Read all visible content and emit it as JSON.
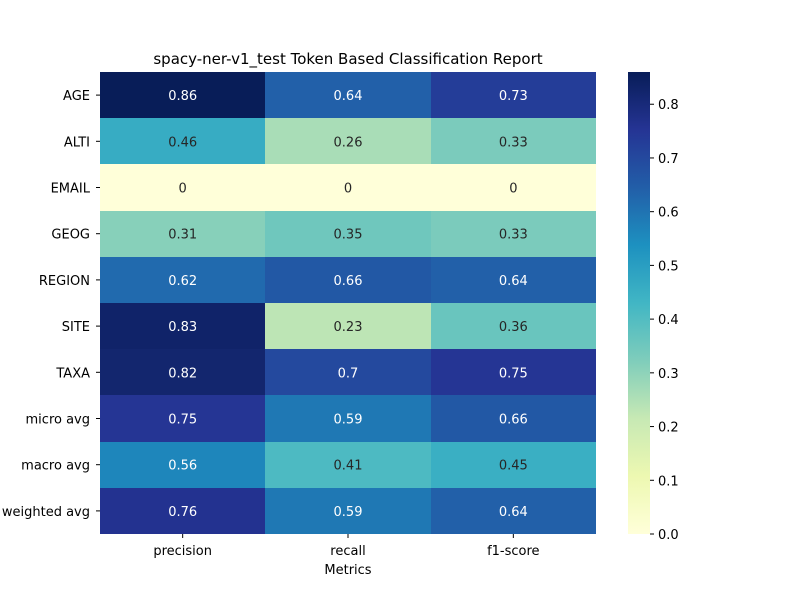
{
  "chart_data": {
    "type": "heatmap",
    "title": "spacy-ner-v1_test Token Based Classification Report",
    "xlabel": "Metrics",
    "ylabel": "",
    "columns": [
      "precision",
      "recall",
      "f1-score"
    ],
    "rows": [
      "AGE",
      "ALTI",
      "EMAIL",
      "GEOG",
      "REGION",
      "SITE",
      "TAXA",
      "micro avg",
      "macro avg",
      "weighted avg"
    ],
    "values": [
      [
        0.86,
        0.64,
        0.73
      ],
      [
        0.46,
        0.26,
        0.33
      ],
      [
        0,
        0,
        0
      ],
      [
        0.31,
        0.35,
        0.33
      ],
      [
        0.62,
        0.66,
        0.64
      ],
      [
        0.83,
        0.23,
        0.36
      ],
      [
        0.82,
        0.7,
        0.75
      ],
      [
        0.75,
        0.59,
        0.66
      ],
      [
        0.56,
        0.41,
        0.45
      ],
      [
        0.76,
        0.59,
        0.64
      ]
    ],
    "colormap": "YlGnBu",
    "vmin": 0,
    "vmax": 0.86,
    "colorbar_ticks": [
      "0.0",
      "0.1",
      "0.2",
      "0.3",
      "0.4",
      "0.5",
      "0.6",
      "0.7",
      "0.8"
    ],
    "annotations": "shown"
  }
}
